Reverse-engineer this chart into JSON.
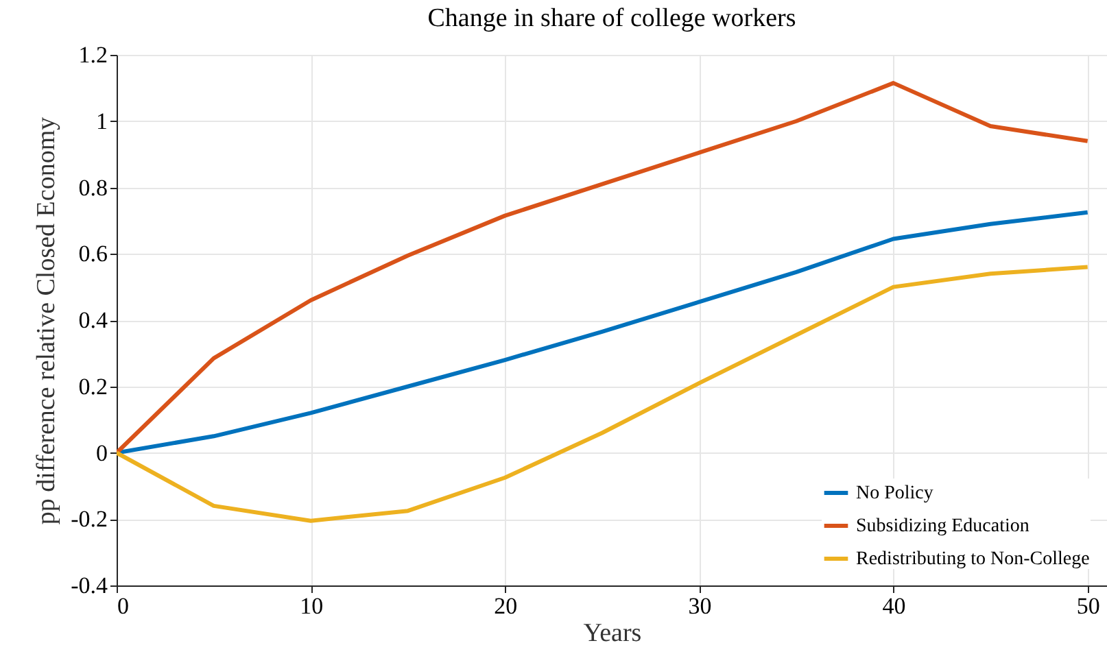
{
  "chart_data": {
    "type": "line",
    "title": "Change in share of college workers",
    "xlabel": "Years",
    "ylabel": "pp difference relative Closed Economy",
    "x": [
      0,
      5,
      10,
      15,
      20,
      25,
      30,
      35,
      40,
      45,
      50
    ],
    "series": [
      {
        "name": "No Policy",
        "color": "#0072bd",
        "values": [
          0,
          0.05,
          0.12,
          0.2,
          0.28,
          0.365,
          0.455,
          0.545,
          0.645,
          0.69,
          0.725
        ]
      },
      {
        "name": "Subsidizing Education",
        "color": "#d95319",
        "values": [
          0,
          0.285,
          0.46,
          0.595,
          0.715,
          0.81,
          0.905,
          1.0,
          1.115,
          0.985,
          0.94
        ]
      },
      {
        "name": "Redistributing to Non-College",
        "color": "#edb120",
        "values": [
          0,
          -0.16,
          -0.205,
          -0.175,
          -0.075,
          0.06,
          0.21,
          0.355,
          0.5,
          0.54,
          0.56
        ]
      }
    ],
    "xlim": [
      0,
      51
    ],
    "xticks": [
      0,
      10,
      20,
      30,
      40,
      50
    ],
    "ylim": [
      -0.4,
      1.2
    ],
    "yticks": [
      -0.4,
      -0.2,
      0,
      0.2,
      0.4,
      0.6,
      0.8,
      1,
      1.2
    ],
    "grid": true,
    "legend": "bottom right",
    "line_style": "solid"
  }
}
